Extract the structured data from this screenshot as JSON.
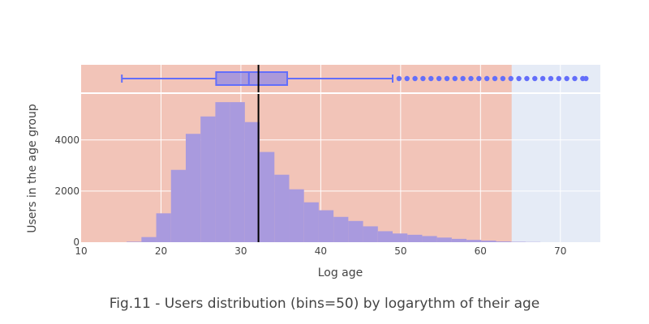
{
  "chart_data": {
    "type": "bar",
    "subtype": "histogram-with-marginal-boxplot",
    "title": "Fig.11 - Users distribution (bins=50) by logarythm of their age",
    "xlabel": "Log age",
    "ylabel": "Users in the age group",
    "xlim": [
      10,
      75
    ],
    "ylim": [
      0,
      5800
    ],
    "x_ticks": [
      10,
      20,
      30,
      40,
      50,
      60,
      70
    ],
    "y_ticks": [
      0,
      2000,
      4000
    ],
    "grid": true,
    "bar_color": "#a99ade",
    "box_color": "#636efa",
    "histogram": {
      "bin_width": 1.85,
      "bins": [
        {
          "x0": 15.7,
          "count": 20
        },
        {
          "x0": 17.55,
          "count": 200
        },
        {
          "x0": 19.4,
          "count": 1130
        },
        {
          "x0": 21.25,
          "count": 2830
        },
        {
          "x0": 23.1,
          "count": 4240
        },
        {
          "x0": 24.95,
          "count": 4920
        },
        {
          "x0": 26.8,
          "count": 5480
        },
        {
          "x0": 28.65,
          "count": 5480
        },
        {
          "x0": 30.5,
          "count": 4700
        },
        {
          "x0": 32.35,
          "count": 3530
        },
        {
          "x0": 34.2,
          "count": 2640
        },
        {
          "x0": 36.05,
          "count": 2070
        },
        {
          "x0": 37.9,
          "count": 1560
        },
        {
          "x0": 39.75,
          "count": 1250
        },
        {
          "x0": 41.6,
          "count": 990
        },
        {
          "x0": 43.45,
          "count": 830
        },
        {
          "x0": 45.3,
          "count": 620
        },
        {
          "x0": 47.15,
          "count": 430
        },
        {
          "x0": 49.0,
          "count": 340
        },
        {
          "x0": 50.85,
          "count": 290
        },
        {
          "x0": 52.7,
          "count": 240
        },
        {
          "x0": 54.55,
          "count": 180
        },
        {
          "x0": 56.4,
          "count": 130
        },
        {
          "x0": 58.25,
          "count": 90
        },
        {
          "x0": 60.1,
          "count": 60
        },
        {
          "x0": 61.95,
          "count": 30
        },
        {
          "x0": 63.8,
          "count": 15
        },
        {
          "x0": 65.65,
          "count": 8
        }
      ]
    },
    "boxplot": {
      "lower_fence": 15.1,
      "q1": 26.9,
      "median": 31.0,
      "q3": 35.8,
      "upper_fence": 49.0,
      "outliers": [
        49.8,
        50.8,
        51.8,
        52.8,
        53.8,
        54.8,
        55.8,
        56.8,
        57.8,
        58.8,
        59.8,
        60.8,
        61.8,
        62.8,
        63.8,
        64.8,
        65.8,
        66.8,
        67.8,
        68.8,
        69.8,
        70.8,
        71.8,
        72.8,
        73.2
      ]
    },
    "vertical_line": {
      "x": 32.2,
      "color": "#000000"
    },
    "shaded_region": {
      "x_range": [
        10,
        63.9
      ],
      "color": "#f2c4b8"
    },
    "plot_bg_color": "#e5ebf6"
  }
}
